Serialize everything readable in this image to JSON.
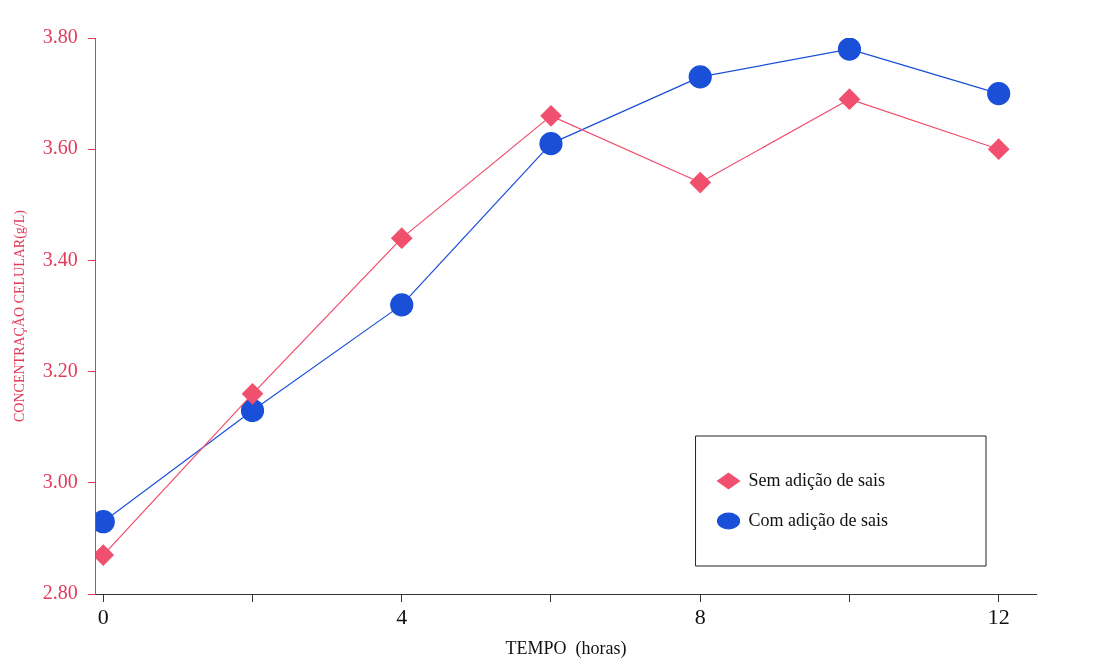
{
  "chart_data": {
    "type": "line",
    "xlabel": "TEMPO  (horas)",
    "ylabel": "CONCENTRAÇÃO CELULAR(g/L)",
    "x": [
      0,
      2,
      4,
      6,
      8,
      10,
      12
    ],
    "series": [
      {
        "name": "Sem adição de sais",
        "color": "#f0506e",
        "marker": "diamond",
        "values": [
          2.87,
          3.16,
          3.44,
          3.66,
          3.54,
          3.69,
          3.6
        ]
      },
      {
        "name": "Com adição de sais",
        "color": "#1a4fd8",
        "marker": "circle",
        "values": [
          2.93,
          3.13,
          3.32,
          3.61,
          3.73,
          3.78,
          3.7
        ]
      }
    ],
    "xlim": [
      -0.1,
      12.5
    ],
    "xticks": [
      0,
      {
        "value": 2,
        "label": null
      },
      4,
      {
        "value": 6,
        "label": null
      },
      8,
      {
        "value": 10,
        "label": null
      },
      12
    ],
    "ylim": [
      2.8,
      3.8
    ],
    "yticks": [
      {
        "value": 2.8,
        "label": "2.80"
      },
      {
        "value": 3.0,
        "label": "3.00"
      },
      {
        "value": 3.2,
        "label": "3.20"
      },
      {
        "value": 3.4,
        "label": "3.40"
      },
      {
        "value": 3.6,
        "label": "3.60"
      },
      {
        "value": 3.8,
        "label": "3.80"
      }
    ],
    "grid": false,
    "legend": "bottom right",
    "line_style": "solid"
  }
}
